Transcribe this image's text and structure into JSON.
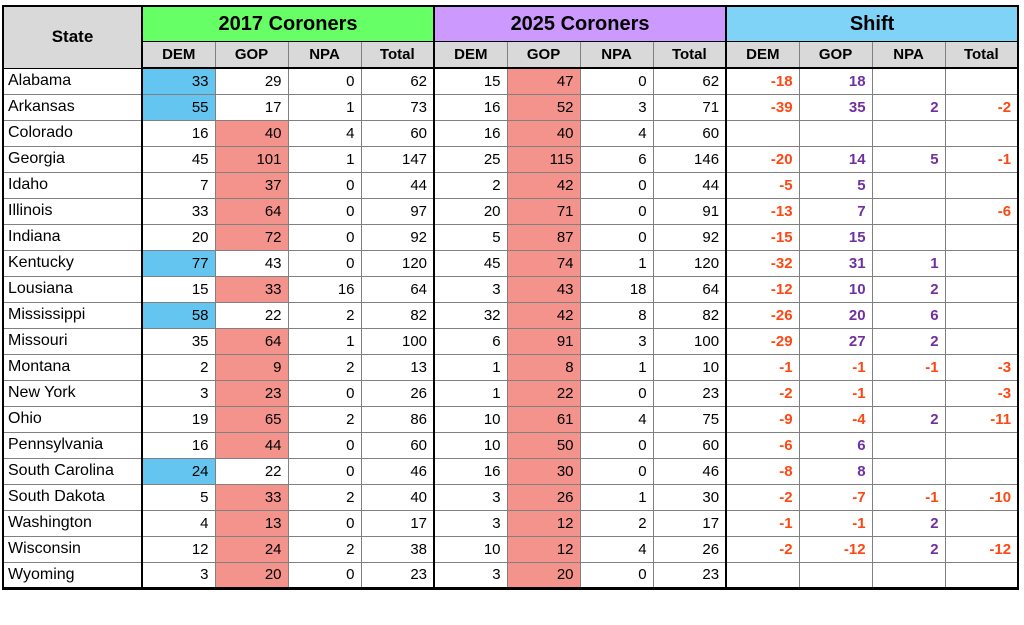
{
  "chart_data": {
    "type": "table",
    "corner_label": "State",
    "column_groups": [
      {
        "label": "2017 Coroners"
      },
      {
        "label": "2025 Coroners"
      },
      {
        "label": "Shift"
      }
    ],
    "sub_headers": [
      "DEM",
      "GOP",
      "NPA",
      "Total"
    ],
    "rows": [
      {
        "state": "Alabama",
        "y2017": [
          "33",
          "29",
          "0",
          "62"
        ],
        "y2017_highlight": "dem",
        "y2025": [
          "15",
          "47",
          "0",
          "62"
        ],
        "y2025_highlight": "gop",
        "shift": [
          "-18",
          "18",
          "",
          ""
        ]
      },
      {
        "state": "Arkansas",
        "y2017": [
          "55",
          "17",
          "1",
          "73"
        ],
        "y2017_highlight": "dem",
        "y2025": [
          "16",
          "52",
          "3",
          "71"
        ],
        "y2025_highlight": "gop",
        "shift": [
          "-39",
          "35",
          "2",
          "-2"
        ]
      },
      {
        "state": "Colorado",
        "y2017": [
          "16",
          "40",
          "4",
          "60"
        ],
        "y2017_highlight": "gop",
        "y2025": [
          "16",
          "40",
          "4",
          "60"
        ],
        "y2025_highlight": "gop",
        "shift": [
          "",
          "",
          "",
          ""
        ]
      },
      {
        "state": "Georgia",
        "y2017": [
          "45",
          "101",
          "1",
          "147"
        ],
        "y2017_highlight": "gop",
        "y2025": [
          "25",
          "115",
          "6",
          "146"
        ],
        "y2025_highlight": "gop",
        "shift": [
          "-20",
          "14",
          "5",
          "-1"
        ]
      },
      {
        "state": "Idaho",
        "y2017": [
          "7",
          "37",
          "0",
          "44"
        ],
        "y2017_highlight": "gop",
        "y2025": [
          "2",
          "42",
          "0",
          "44"
        ],
        "y2025_highlight": "gop",
        "shift": [
          "-5",
          "5",
          "",
          ""
        ]
      },
      {
        "state": "Illinois",
        "y2017": [
          "33",
          "64",
          "0",
          "97"
        ],
        "y2017_highlight": "gop",
        "y2025": [
          "20",
          "71",
          "0",
          "91"
        ],
        "y2025_highlight": "gop",
        "shift": [
          "-13",
          "7",
          "",
          "-6"
        ]
      },
      {
        "state": "Indiana",
        "y2017": [
          "20",
          "72",
          "0",
          "92"
        ],
        "y2017_highlight": "gop",
        "y2025": [
          "5",
          "87",
          "0",
          "92"
        ],
        "y2025_highlight": "gop",
        "shift": [
          "-15",
          "15",
          "",
          ""
        ]
      },
      {
        "state": "Kentucky",
        "y2017": [
          "77",
          "43",
          "0",
          "120"
        ],
        "y2017_highlight": "dem",
        "y2025": [
          "45",
          "74",
          "1",
          "120"
        ],
        "y2025_highlight": "gop",
        "shift": [
          "-32",
          "31",
          "1",
          ""
        ]
      },
      {
        "state": "Lousiana",
        "y2017": [
          "15",
          "33",
          "16",
          "64"
        ],
        "y2017_highlight": "gop",
        "y2025": [
          "3",
          "43",
          "18",
          "64"
        ],
        "y2025_highlight": "gop",
        "shift": [
          "-12",
          "10",
          "2",
          ""
        ]
      },
      {
        "state": "Mississippi",
        "y2017": [
          "58",
          "22",
          "2",
          "82"
        ],
        "y2017_highlight": "dem",
        "y2025": [
          "32",
          "42",
          "8",
          "82"
        ],
        "y2025_highlight": "gop",
        "shift": [
          "-26",
          "20",
          "6",
          ""
        ]
      },
      {
        "state": "Missouri",
        "y2017": [
          "35",
          "64",
          "1",
          "100"
        ],
        "y2017_highlight": "gop",
        "y2025": [
          "6",
          "91",
          "3",
          "100"
        ],
        "y2025_highlight": "gop",
        "shift": [
          "-29",
          "27",
          "2",
          ""
        ]
      },
      {
        "state": "Montana",
        "y2017": [
          "2",
          "9",
          "2",
          "13"
        ],
        "y2017_highlight": "gop",
        "y2025": [
          "1",
          "8",
          "1",
          "10"
        ],
        "y2025_highlight": "gop",
        "shift": [
          "-1",
          "-1",
          "-1",
          "-3"
        ]
      },
      {
        "state": "New York",
        "y2017": [
          "3",
          "23",
          "0",
          "26"
        ],
        "y2017_highlight": "gop",
        "y2025": [
          "1",
          "22",
          "0",
          "23"
        ],
        "y2025_highlight": "gop",
        "shift": [
          "-2",
          "-1",
          "",
          "-3"
        ]
      },
      {
        "state": "Ohio",
        "y2017": [
          "19",
          "65",
          "2",
          "86"
        ],
        "y2017_highlight": "gop",
        "y2025": [
          "10",
          "61",
          "4",
          "75"
        ],
        "y2025_highlight": "gop",
        "shift": [
          "-9",
          "-4",
          "2",
          "-11"
        ]
      },
      {
        "state": "Pennsylvania",
        "y2017": [
          "16",
          "44",
          "0",
          "60"
        ],
        "y2017_highlight": "gop",
        "y2025": [
          "10",
          "50",
          "0",
          "60"
        ],
        "y2025_highlight": "gop",
        "shift": [
          "-6",
          "6",
          "",
          ""
        ]
      },
      {
        "state": "South Carolina",
        "y2017": [
          "24",
          "22",
          "0",
          "46"
        ],
        "y2017_highlight": "dem",
        "y2025": [
          "16",
          "30",
          "0",
          "46"
        ],
        "y2025_highlight": "gop",
        "shift": [
          "-8",
          "8",
          "",
          ""
        ]
      },
      {
        "state": "South Dakota",
        "y2017": [
          "5",
          "33",
          "2",
          "40"
        ],
        "y2017_highlight": "gop",
        "y2025": [
          "3",
          "26",
          "1",
          "30"
        ],
        "y2025_highlight": "gop",
        "shift": [
          "-2",
          "-7",
          "-1",
          "-10"
        ]
      },
      {
        "state": "Washington",
        "y2017": [
          "4",
          "13",
          "0",
          "17"
        ],
        "y2017_highlight": "gop",
        "y2025": [
          "3",
          "12",
          "2",
          "17"
        ],
        "y2025_highlight": "gop",
        "shift": [
          "-1",
          "-1",
          "2",
          ""
        ]
      },
      {
        "state": "Wisconsin",
        "y2017": [
          "12",
          "24",
          "2",
          "38"
        ],
        "y2017_highlight": "gop",
        "y2025": [
          "10",
          "12",
          "4",
          "26"
        ],
        "y2025_highlight": "gop",
        "shift": [
          "-2",
          "-12",
          "2",
          "-12"
        ]
      },
      {
        "state": "Wyoming",
        "y2017": [
          "3",
          "20",
          "0",
          "23"
        ],
        "y2017_highlight": "gop",
        "y2025": [
          "3",
          "20",
          "0",
          "23"
        ],
        "y2025_highlight": "gop",
        "shift": [
          "",
          "",
          "",
          ""
        ]
      }
    ]
  },
  "colors": {
    "group_2017": "#66FF66",
    "group_2025": "#CC99FF",
    "group_shift": "#7ED3F7",
    "header_gray": "#D9D9D9",
    "dem_highlight": "#63C5F0",
    "gop_highlight": "#F4928C",
    "shift_negative": "#FF4713",
    "shift_positive": "#7030A0"
  }
}
